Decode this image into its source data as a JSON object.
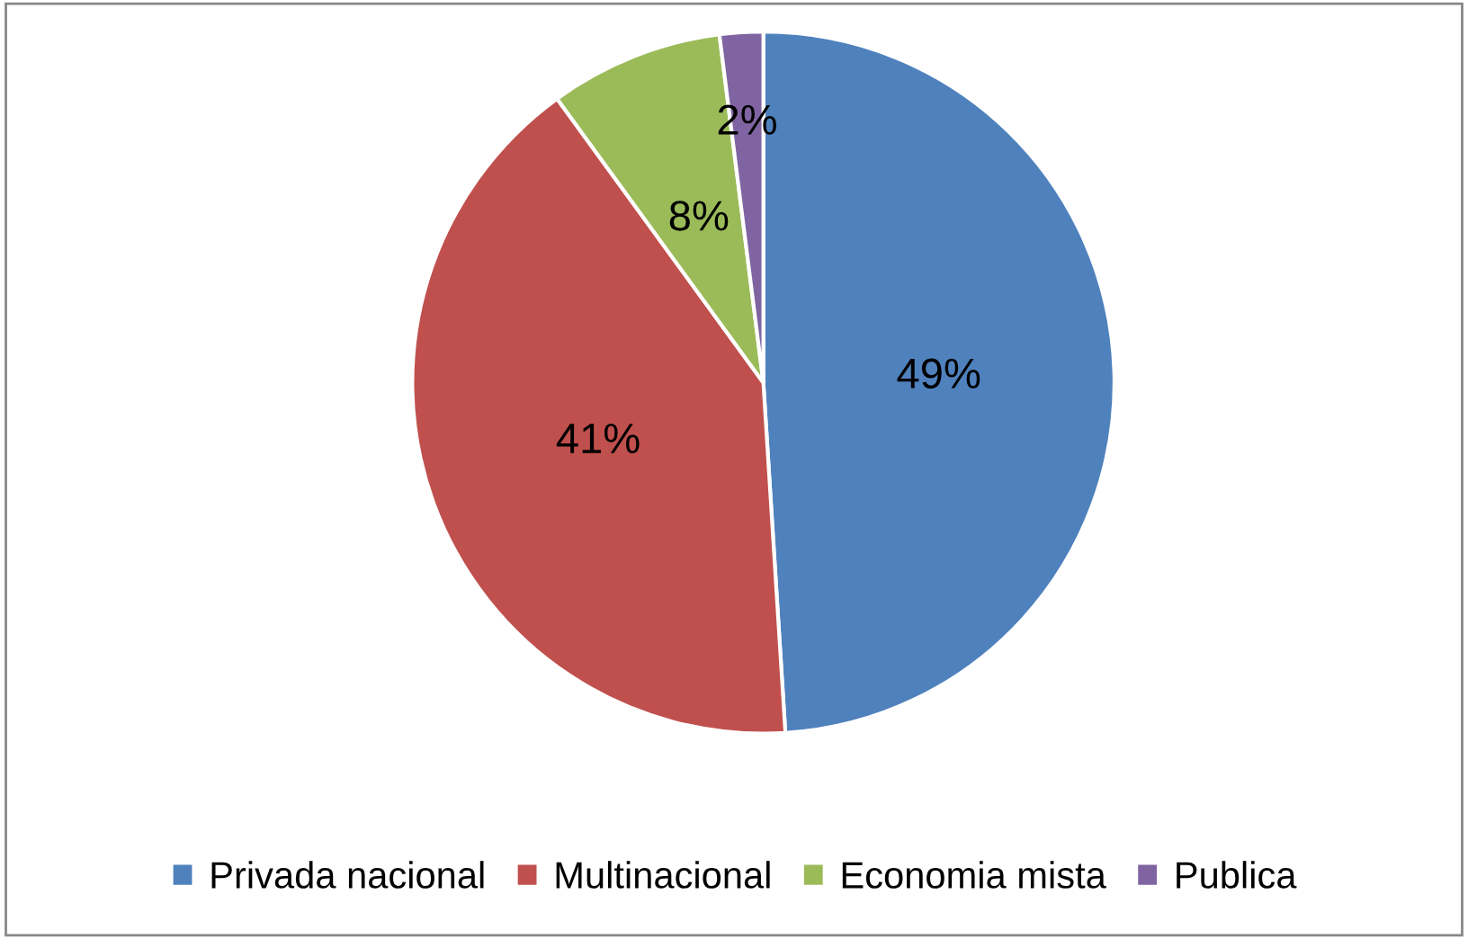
{
  "chart_data": {
    "type": "pie",
    "categories": [
      "Privada nacional",
      "Multinacional",
      "Economia mista",
      "Publica"
    ],
    "values": [
      49,
      41,
      8,
      2
    ],
    "colors": [
      "#4f81bd",
      "#c0504d",
      "#9bbb59",
      "#8064a2"
    ],
    "value_labels": [
      "49%",
      "41%",
      "8%",
      "2%"
    ],
    "legend": "bottom"
  }
}
